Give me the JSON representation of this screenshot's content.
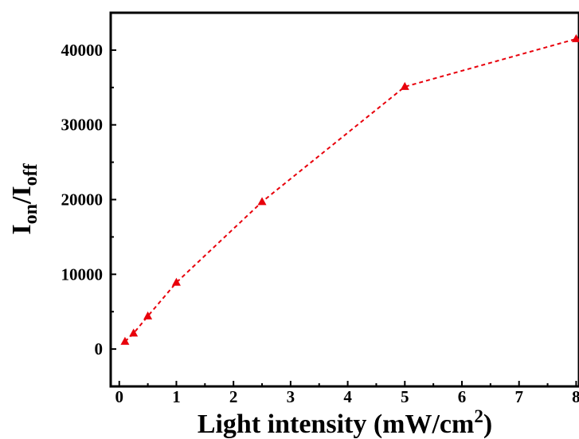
{
  "chart_data": {
    "type": "line",
    "title": "",
    "xlabel": "Light intensity (mW/cm",
    "xlabel_sup": "2",
    "xlabel_close": ")",
    "ylabel_main_1": "I",
    "ylabel_sub_1": "on",
    "ylabel_sep": "/I",
    "ylabel_sub_2": "off",
    "xlim": [
      -0.15,
      8.05
    ],
    "ylim": [
      -5000,
      45000
    ],
    "x_ticks": [
      0,
      1,
      2,
      3,
      4,
      5,
      6,
      7,
      8
    ],
    "x_tick_labels": [
      "0",
      "1",
      "2",
      "3",
      "4",
      "5",
      "6",
      "7",
      "8"
    ],
    "y_ticks": [
      0,
      10000,
      20000,
      30000,
      40000
    ],
    "y_tick_labels": [
      "0",
      "10000",
      "20000",
      "30000",
      "40000"
    ],
    "grid": false,
    "series": [
      {
        "marker": "triangle",
        "line_style": "dashed",
        "color": "#e8000b",
        "x": [
          0.1,
          0.25,
          0.5,
          1,
          2.5,
          5,
          8
        ],
        "y": [
          1000,
          2100,
          4400,
          8900,
          19700,
          35100,
          41500
        ]
      }
    ]
  }
}
